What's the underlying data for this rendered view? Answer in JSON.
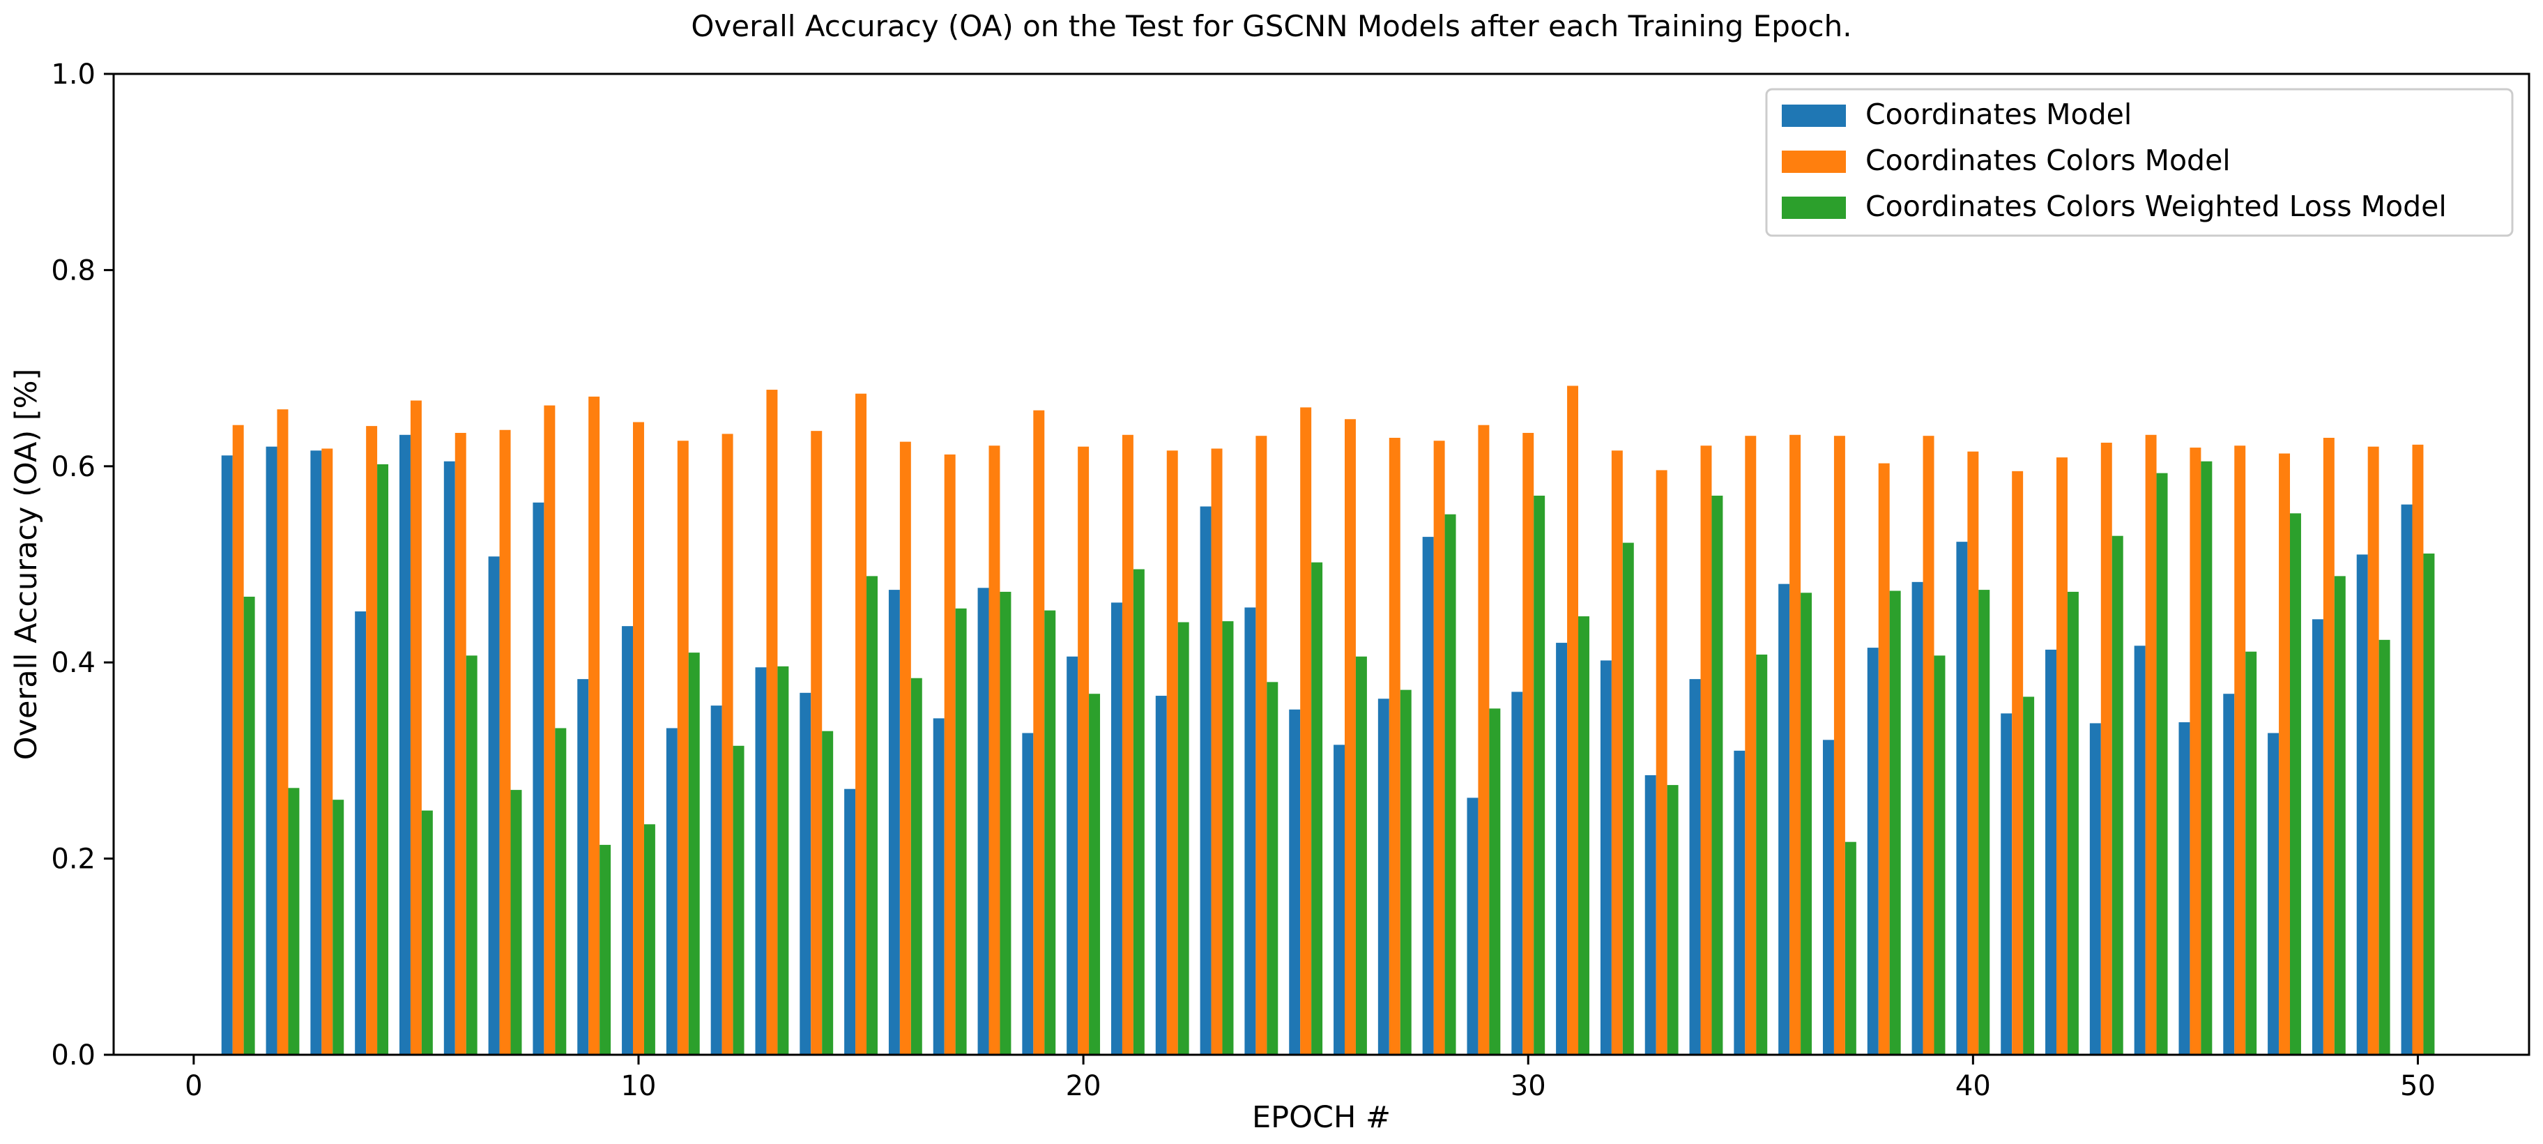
{
  "chart_data": {
    "type": "bar",
    "title": "Overall Accuracy (OA) on the Test for GSCNN Models after each Training Epoch.",
    "xlabel": "EPOCH #",
    "ylabel": "Overall Accuracy (OA) [%]",
    "xlim": [
      -1.8,
      52.5
    ],
    "ylim": [
      0.0,
      1.0
    ],
    "xticks": [
      0,
      10,
      20,
      30,
      40,
      50
    ],
    "yticks": [
      0.0,
      0.2,
      0.4,
      0.6,
      0.8,
      1.0
    ],
    "xtick_labels": [
      "0",
      "10",
      "20",
      "30",
      "40",
      "50"
    ],
    "ytick_labels": [
      "0.0",
      "0.2",
      "0.4",
      "0.6",
      "0.8",
      "1.0"
    ],
    "grid": false,
    "legend_position": "top-right",
    "x": [
      1,
      2,
      3,
      4,
      5,
      6,
      7,
      8,
      9,
      10,
      11,
      12,
      13,
      14,
      15,
      16,
      17,
      18,
      19,
      20,
      21,
      22,
      23,
      24,
      25,
      26,
      27,
      28,
      29,
      30,
      31,
      32,
      33,
      34,
      35,
      36,
      37,
      38,
      39,
      40,
      41,
      42,
      43,
      44,
      45,
      46,
      47,
      48,
      49,
      50
    ],
    "series": [
      {
        "name": "Coordinates Model",
        "color": "#1f77b4",
        "values": [
          0.611,
          0.62,
          0.616,
          0.452,
          0.632,
          0.605,
          0.508,
          0.563,
          0.383,
          0.437,
          0.333,
          0.356,
          0.395,
          0.369,
          0.271,
          0.474,
          0.343,
          0.476,
          0.328,
          0.406,
          0.461,
          0.366,
          0.559,
          0.456,
          0.352,
          0.316,
          0.363,
          0.528,
          0.262,
          0.37,
          0.42,
          0.402,
          0.285,
          0.383,
          0.31,
          0.48,
          0.321,
          0.415,
          0.482,
          0.523,
          0.348,
          0.413,
          0.338,
          0.417,
          0.339,
          0.368,
          0.328,
          0.444,
          0.51,
          0.561
        ]
      },
      {
        "name": "Coordinates Colors Model",
        "color": "#ff7f0e",
        "values": [
          0.642,
          0.658,
          0.618,
          0.641,
          0.667,
          0.634,
          0.637,
          0.662,
          0.671,
          0.645,
          0.626,
          0.633,
          0.678,
          0.636,
          0.674,
          0.625,
          0.612,
          0.621,
          0.657,
          0.62,
          0.632,
          0.616,
          0.618,
          0.631,
          0.66,
          0.648,
          0.629,
          0.626,
          0.642,
          0.634,
          0.682,
          0.616,
          0.596,
          0.621,
          0.631,
          0.632,
          0.631,
          0.603,
          0.631,
          0.615,
          0.595,
          0.609,
          0.624,
          0.632,
          0.619,
          0.621,
          0.613,
          0.629,
          0.62,
          0.622
        ]
      },
      {
        "name": "Coordinates Colors Weighted Loss Model",
        "color": "#2ca02c",
        "values": [
          0.467,
          0.272,
          0.26,
          0.602,
          0.249,
          0.407,
          0.27,
          0.333,
          0.214,
          0.235,
          0.41,
          0.315,
          0.396,
          0.33,
          0.488,
          0.384,
          0.455,
          0.472,
          0.453,
          0.368,
          0.495,
          0.441,
          0.442,
          0.38,
          0.502,
          0.406,
          0.372,
          0.551,
          0.353,
          0.57,
          0.447,
          0.522,
          0.275,
          0.57,
          0.408,
          0.471,
          0.217,
          0.473,
          0.407,
          0.474,
          0.365,
          0.472,
          0.529,
          0.593,
          0.605,
          0.411,
          0.552,
          0.488,
          0.423,
          0.511
        ]
      }
    ]
  }
}
